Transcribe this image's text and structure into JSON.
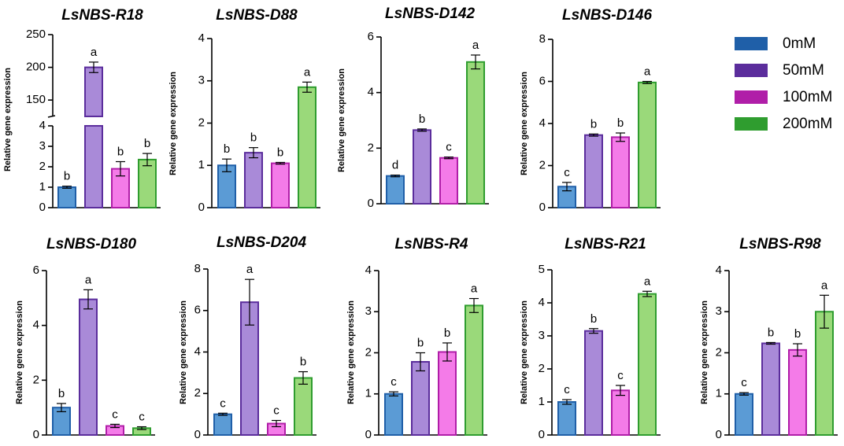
{
  "chart_data": [
    {
      "type": "bar",
      "title": "LsNBS-R18",
      "ylabel": "Relative gene expression",
      "axis_break": true,
      "lower_ylim": [
        0,
        4
      ],
      "lower_yticks": [
        "0",
        "1",
        "2",
        "3",
        "4"
      ],
      "upper_ylim": [
        125,
        250
      ],
      "upper_yticks": [
        "150",
        "200",
        "250"
      ],
      "categories": [
        "0mM",
        "50mM",
        "100mM",
        "200mM"
      ],
      "values": [
        1.0,
        200,
        1.9,
        2.35
      ],
      "errors": [
        0.05,
        8,
        0.35,
        0.3
      ],
      "letters": [
        "b",
        "a",
        "b",
        "b"
      ]
    },
    {
      "type": "bar",
      "title": "LsNBS-D88",
      "ylabel": "Relative gene expression",
      "ylim": [
        0,
        4
      ],
      "yticks": [
        "0",
        "1",
        "2",
        "3",
        "4"
      ],
      "categories": [
        "0mM",
        "50mM",
        "100mM",
        "200mM"
      ],
      "values": [
        1.0,
        1.3,
        1.05,
        2.85
      ],
      "errors": [
        0.15,
        0.12,
        0.02,
        0.12
      ],
      "letters": [
        "b",
        "b",
        "b",
        "a"
      ]
    },
    {
      "type": "bar",
      "title": "LsNBS-D142",
      "ylabel": "Relative gene expression",
      "ylim": [
        0,
        6
      ],
      "yticks": [
        "0",
        "2",
        "4",
        "6"
      ],
      "categories": [
        "0mM",
        "50mM",
        "100mM",
        "200mM"
      ],
      "values": [
        1.0,
        2.65,
        1.65,
        5.1
      ],
      "errors": [
        0.03,
        0.04,
        0.03,
        0.25
      ],
      "letters": [
        "d",
        "b",
        "c",
        "a"
      ]
    },
    {
      "type": "bar",
      "title": "LsNBS-D146",
      "ylabel": "Relative gene expression",
      "ylim": [
        0,
        8
      ],
      "yticks": [
        "0",
        "2",
        "4",
        "6",
        "8"
      ],
      "categories": [
        "0mM",
        "50mM",
        "100mM",
        "200mM"
      ],
      "values": [
        1.0,
        3.45,
        3.35,
        5.95
      ],
      "errors": [
        0.2,
        0.05,
        0.2,
        0.05
      ],
      "letters": [
        "c",
        "b",
        "b",
        "a"
      ]
    },
    {
      "type": "bar",
      "title": "LsNBS-D180",
      "ylabel": "Relative gene expression",
      "ylim": [
        0,
        6
      ],
      "yticks": [
        "0",
        "2",
        "4",
        "6"
      ],
      "categories": [
        "0mM",
        "50mM",
        "100mM",
        "200mM"
      ],
      "values": [
        1.0,
        4.95,
        0.33,
        0.25
      ],
      "errors": [
        0.15,
        0.35,
        0.06,
        0.05
      ],
      "letters": [
        "b",
        "a",
        "c",
        "c"
      ]
    },
    {
      "type": "bar",
      "title": "LsNBS-D204",
      "ylabel": "Relative gene expression",
      "ylim": [
        0,
        8
      ],
      "yticks": [
        "0",
        "2",
        "4",
        "6",
        "8"
      ],
      "categories": [
        "0mM",
        "50mM",
        "100mM",
        "200mM"
      ],
      "values": [
        1.0,
        6.4,
        0.55,
        2.75
      ],
      "errors": [
        0.05,
        1.1,
        0.15,
        0.3
      ],
      "letters": [
        "c",
        "a",
        "c",
        "b"
      ]
    },
    {
      "type": "bar",
      "title": "LsNBS-R4",
      "ylabel": "Relative gene expression",
      "ylim": [
        0,
        4
      ],
      "yticks": [
        "0",
        "1",
        "2",
        "3",
        "4"
      ],
      "categories": [
        "0mM",
        "50mM",
        "100mM",
        "200mM"
      ],
      "values": [
        1.0,
        1.78,
        2.02,
        3.15
      ],
      "errors": [
        0.05,
        0.22,
        0.22,
        0.17
      ],
      "letters": [
        "c",
        "b",
        "b",
        "a"
      ]
    },
    {
      "type": "bar",
      "title": "LsNBS-R21",
      "ylabel": "Relative gene expression",
      "ylim": [
        0,
        5
      ],
      "yticks": [
        "0",
        "1",
        "2",
        "3",
        "4",
        "5"
      ],
      "categories": [
        "0mM",
        "50mM",
        "100mM",
        "200mM"
      ],
      "values": [
        1.0,
        3.15,
        1.35,
        4.27
      ],
      "errors": [
        0.07,
        0.07,
        0.15,
        0.08
      ],
      "letters": [
        "c",
        "b",
        "c",
        "a"
      ]
    },
    {
      "type": "bar",
      "title": "LsNBS-R98",
      "ylabel": "Relative gene expression",
      "ylim": [
        0,
        4
      ],
      "yticks": [
        "0",
        "1",
        "2",
        "3",
        "4"
      ],
      "categories": [
        "0mM",
        "50mM",
        "100mM",
        "200mM"
      ],
      "values": [
        1.0,
        2.23,
        2.07,
        3.0
      ],
      "errors": [
        0.03,
        0.02,
        0.15,
        0.4
      ],
      "letters": [
        "c",
        "b",
        "b",
        "a"
      ]
    }
  ],
  "legend": {
    "entries": [
      {
        "label": "0mM",
        "fill": "#5b9bd5",
        "edge": "#1f5fa8"
      },
      {
        "label": "50mM",
        "fill": "#a98ad8",
        "edge": "#5b2d9c"
      },
      {
        "label": "100mM",
        "fill": "#f47be8",
        "edge": "#b01ea8"
      },
      {
        "label": "200mM",
        "fill": "#9ad97a",
        "edge": "#2f9d2f"
      }
    ]
  }
}
